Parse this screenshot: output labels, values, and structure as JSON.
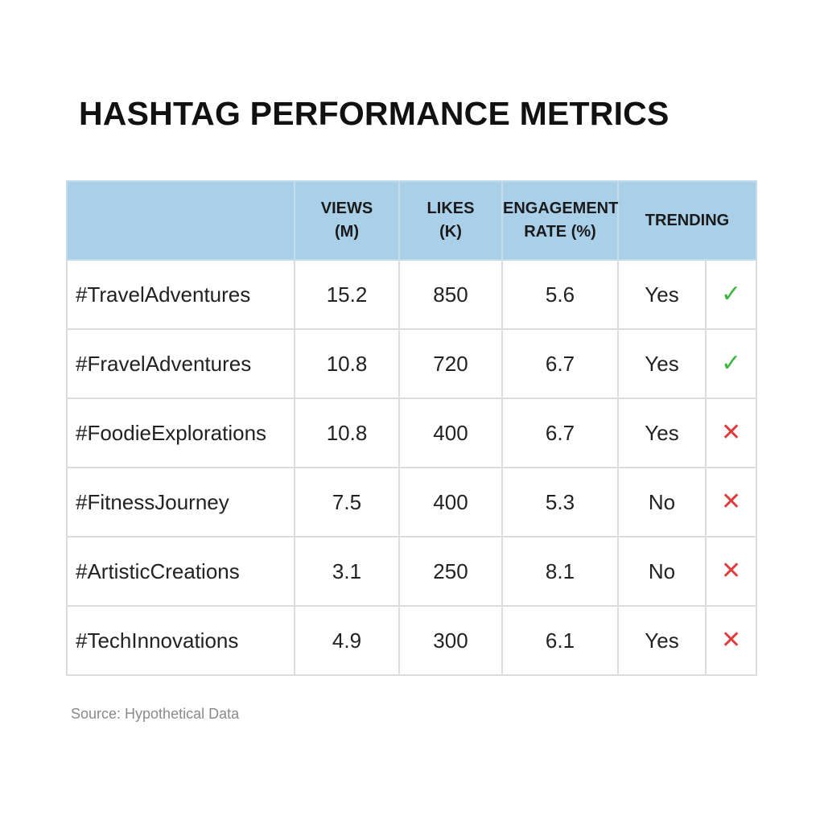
{
  "chart_data": {
    "type": "table",
    "title": "HASHTAG PERFORMANCE METRICS",
    "columns": [
      {
        "key": "hashtag",
        "lines": [
          "",
          ""
        ]
      },
      {
        "key": "views",
        "lines": [
          "VIEWS",
          "(M)"
        ]
      },
      {
        "key": "likes",
        "lines": [
          "LIKES",
          "(K)"
        ]
      },
      {
        "key": "engagement",
        "lines": [
          "ENGAGEMENT",
          "RATE (%)"
        ]
      },
      {
        "key": "trending",
        "lines": [
          "TRENDING",
          ""
        ]
      }
    ],
    "rows": [
      {
        "hashtag": "#TravelAdventures",
        "views": "15.2",
        "likes": "850",
        "engagement": "5.6",
        "trending": "Yes",
        "status": "check"
      },
      {
        "hashtag": "#FravelAdventures",
        "views": "10.8",
        "likes": "720",
        "engagement": "6.7",
        "trending": "Yes",
        "status": "check"
      },
      {
        "hashtag": "#FoodieExplorations",
        "views": "10.8",
        "likes": "400",
        "engagement": "6.7",
        "trending": "Yes",
        "status": "cross"
      },
      {
        "hashtag": "#FitnessJourney",
        "views": "7.5",
        "likes": "400",
        "engagement": "5.3",
        "trending": "No",
        "status": "cross"
      },
      {
        "hashtag": "#ArtisticCreations",
        "views": "3.1",
        "likes": "250",
        "engagement": "8.1",
        "trending": "No",
        "status": "cross"
      },
      {
        "hashtag": "#TechInnovations",
        "views": "4.9",
        "likes": "300",
        "engagement": "6.1",
        "trending": "Yes",
        "status": "cross"
      }
    ],
    "status_icons": {
      "check": "check-icon",
      "cross": "cross-icon"
    },
    "status_glyphs": {
      "check": "✓",
      "cross": "✕"
    },
    "colors": {
      "header_bg": "#a9cfe9",
      "check": "#3fb53f",
      "cross": "#e23a3a",
      "grid": "#dcdcdc"
    }
  },
  "footer": {
    "source": "Source: Hypothetical Data"
  }
}
